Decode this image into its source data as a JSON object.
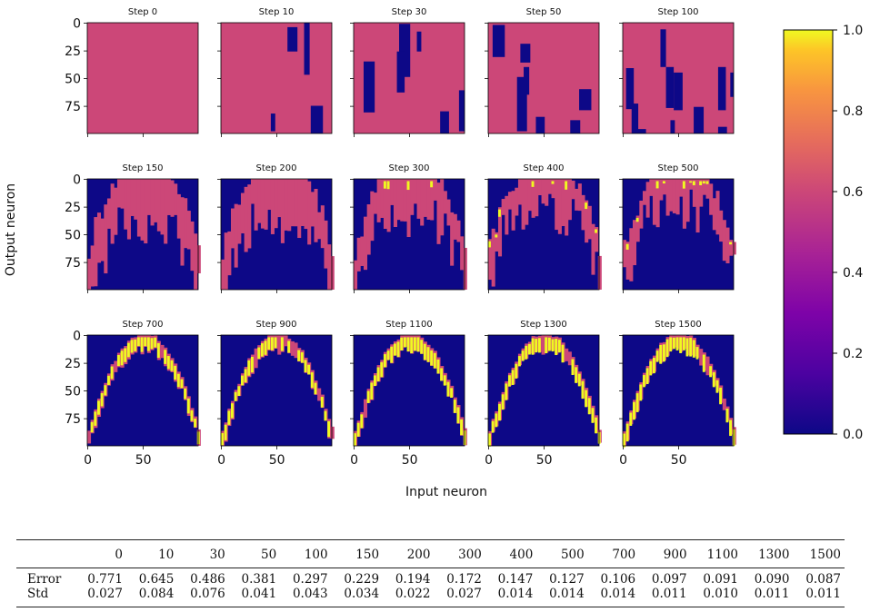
{
  "chart_data": {
    "type": "heatmap",
    "description_labels": {
      "xlabel": "Input neuron",
      "ylabel": "Output neuron"
    },
    "panels": [
      {
        "title": "Step 0"
      },
      {
        "title": "Step 10"
      },
      {
        "title": "Step 30"
      },
      {
        "title": "Step 50"
      },
      {
        "title": "Step 100"
      },
      {
        "title": "Step 150"
      },
      {
        "title": "Step 200"
      },
      {
        "title": "Step 300"
      },
      {
        "title": "Step 400"
      },
      {
        "title": "Step 500"
      },
      {
        "title": "Step 700"
      },
      {
        "title": "Step 900"
      },
      {
        "title": "Step 1100"
      },
      {
        "title": "Step 1300"
      },
      {
        "title": "Step 1500"
      }
    ],
    "matrix_size": 100,
    "x_ticks": [
      0,
      50
    ],
    "y_ticks": [
      0,
      25,
      50,
      75
    ],
    "colorbar": {
      "colormap": "plasma",
      "range": [
        0.0,
        1.0
      ],
      "ticks": [
        "0.0",
        "0.2",
        "0.4",
        "0.6",
        "0.8",
        "1.0"
      ]
    },
    "colors": {
      "low": "#0d0887",
      "mid": "#cc4778",
      "high": "#f0f921"
    }
  },
  "table": {
    "columns": [
      "",
      "0",
      "10",
      "30",
      "50",
      "100",
      "150",
      "200",
      "300",
      "400",
      "500",
      "700",
      "900",
      "1100",
      "1300",
      "1500"
    ],
    "rows": [
      {
        "label": "Error",
        "values": [
          "0.771",
          "0.645",
          "0.486",
          "0.381",
          "0.297",
          "0.229",
          "0.194",
          "0.172",
          "0.147",
          "0.127",
          "0.106",
          "0.097",
          "0.091",
          "0.090",
          "0.087"
        ]
      },
      {
        "label": "Std",
        "values": [
          "0.027",
          "0.084",
          "0.076",
          "0.041",
          "0.043",
          "0.034",
          "0.022",
          "0.027",
          "0.014",
          "0.014",
          "0.014",
          "0.011",
          "0.010",
          "0.011",
          "0.011"
        ]
      }
    ]
  }
}
